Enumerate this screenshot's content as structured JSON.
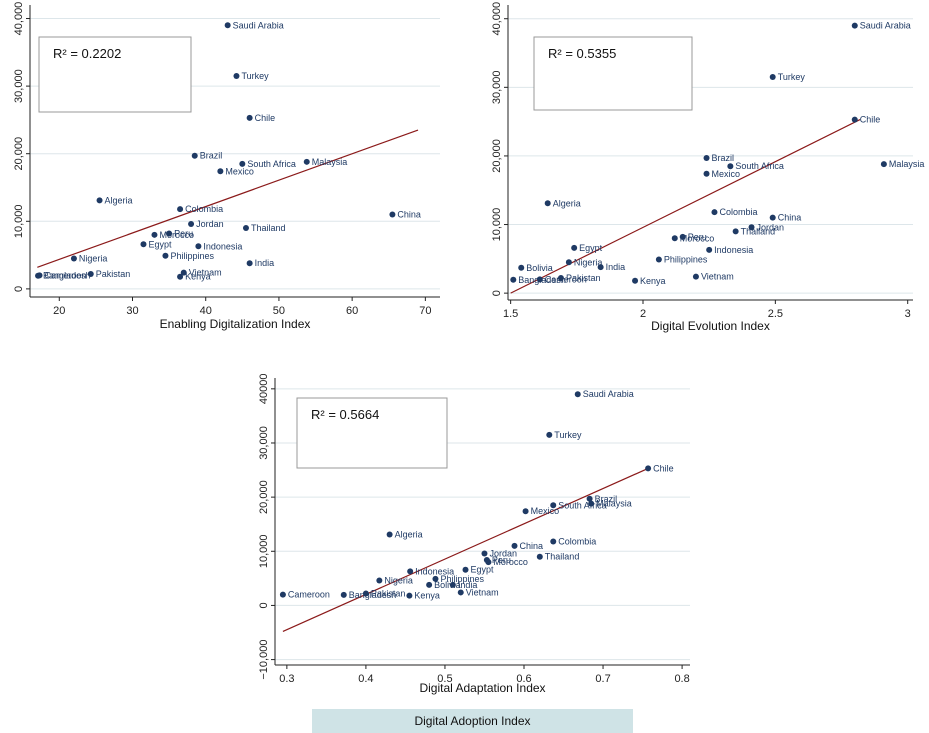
{
  "chart_data": [
    {
      "type": "scatter",
      "xlabel": "Enabling Digitalization Index",
      "ylabel": "",
      "xlim": [
        16,
        72
      ],
      "ylim": [
        -1200,
        42000
      ],
      "xticks": [
        20,
        30,
        40,
        50,
        60,
        70
      ],
      "xtick_labels": [
        "20",
        "30",
        "40",
        "50",
        "60",
        "70"
      ],
      "yticks": [
        0,
        10000,
        20000,
        30000,
        40000
      ],
      "ytick_labels": [
        "0",
        "10,000",
        "20,000",
        "30,000",
        "40,000"
      ],
      "r2_text": "R² = 0.2202",
      "fit_line": [
        [
          17,
          3200
        ],
        [
          69,
          23500
        ]
      ],
      "points": [
        {
          "label": "Saudi Arabia",
          "x": 43,
          "y": 39000
        },
        {
          "label": "Turkey",
          "x": 44.2,
          "y": 31500
        },
        {
          "label": "Chile",
          "x": 46,
          "y": 25300
        },
        {
          "label": "Brazil",
          "x": 38.5,
          "y": 19700
        },
        {
          "label": "South Africa",
          "x": 45,
          "y": 18500
        },
        {
          "label": "Malaysia",
          "x": 53.8,
          "y": 18800
        },
        {
          "label": "Mexico",
          "x": 42,
          "y": 17400
        },
        {
          "label": "Algeria",
          "x": 25.5,
          "y": 13100
        },
        {
          "label": "Colombia",
          "x": 36.5,
          "y": 11800
        },
        {
          "label": "China",
          "x": 65.5,
          "y": 11000
        },
        {
          "label": "Jordan",
          "x": 38,
          "y": 9600
        },
        {
          "label": "Thailand",
          "x": 45.5,
          "y": 9000
        },
        {
          "label": "Peru",
          "x": 35,
          "y": 8200
        },
        {
          "label": "Morocco",
          "x": 33,
          "y": 8000
        },
        {
          "label": "Egypt",
          "x": 31.5,
          "y": 6600
        },
        {
          "label": "Indonesia",
          "x": 39,
          "y": 6300
        },
        {
          "label": "Philippines",
          "x": 34.5,
          "y": 4900
        },
        {
          "label": "Nigeria",
          "x": 22,
          "y": 4500
        },
        {
          "label": "India",
          "x": 46,
          "y": 3800
        },
        {
          "label": "Vietnam",
          "x": 37,
          "y": 2400
        },
        {
          "label": "Pakistan",
          "x": 24.3,
          "y": 2200
        },
        {
          "label": "Kenya",
          "x": 36.5,
          "y": 1800
        },
        {
          "label": "Cameroon",
          "x": 17.3,
          "y": 2000
        },
        {
          "label": "Bangladesh",
          "x": 17.1,
          "y": 1950
        }
      ]
    },
    {
      "type": "scatter",
      "xlabel": "Digital Evolution Index",
      "ylabel": "",
      "xlim": [
        1.49,
        3.02
      ],
      "ylim": [
        -1000,
        42000
      ],
      "xticks": [
        1.5,
        2,
        2.5,
        3
      ],
      "xtick_labels": [
        "1.5",
        "2",
        "2.5",
        "3"
      ],
      "yticks": [
        0,
        10000,
        20000,
        30000,
        40000
      ],
      "ytick_labels": [
        "0",
        "10,000",
        "20,000",
        "30,000",
        "40,000"
      ],
      "r2_text": "R² = 0.5355",
      "fit_line": [
        [
          1.5,
          0
        ],
        [
          2.82,
          25300
        ]
      ],
      "points": [
        {
          "label": "Saudi Arabia",
          "x": 2.8,
          "y": 39000
        },
        {
          "label": "Turkey",
          "x": 2.49,
          "y": 31500
        },
        {
          "label": "Chile",
          "x": 2.8,
          "y": 25300
        },
        {
          "label": "Malaysia",
          "x": 2.91,
          "y": 18800
        },
        {
          "label": "Brazil",
          "x": 2.24,
          "y": 19700
        },
        {
          "label": "South Africa",
          "x": 2.33,
          "y": 18500
        },
        {
          "label": "Mexico",
          "x": 2.24,
          "y": 17400
        },
        {
          "label": "Algeria",
          "x": 1.64,
          "y": 13100
        },
        {
          "label": "Colombia",
          "x": 2.27,
          "y": 11800
        },
        {
          "label": "China",
          "x": 2.49,
          "y": 11000
        },
        {
          "label": "Jordan",
          "x": 2.41,
          "y": 9600
        },
        {
          "label": "Thailand",
          "x": 2.35,
          "y": 9000
        },
        {
          "label": "Peru",
          "x": 2.15,
          "y": 8200
        },
        {
          "label": "Morocco",
          "x": 2.12,
          "y": 8000
        },
        {
          "label": "Egypt",
          "x": 1.74,
          "y": 6600
        },
        {
          "label": "Indonesia",
          "x": 2.25,
          "y": 6300
        },
        {
          "label": "Philippines",
          "x": 2.06,
          "y": 4900
        },
        {
          "label": "Nigeria",
          "x": 1.72,
          "y": 4500
        },
        {
          "label": "India",
          "x": 1.84,
          "y": 3800
        },
        {
          "label": "Bolivia",
          "x": 1.54,
          "y": 3700
        },
        {
          "label": "Vietnam",
          "x": 2.2,
          "y": 2400
        },
        {
          "label": "Pakistan",
          "x": 1.69,
          "y": 2200
        },
        {
          "label": "Kenya",
          "x": 1.97,
          "y": 1800
        },
        {
          "label": "Cameroon",
          "x": 1.61,
          "y": 2000
        },
        {
          "label": "Bangladesh",
          "x": 1.51,
          "y": 1950
        }
      ]
    },
    {
      "type": "scatter",
      "xlabel": "Digital Adaptation Index",
      "ylabel": "",
      "xlim": [
        0.285,
        0.81
      ],
      "ylim": [
        -11000,
        42000
      ],
      "xticks": [
        0.3,
        0.4,
        0.5,
        0.6,
        0.7,
        0.8
      ],
      "xtick_labels": [
        "0.3",
        "0.4",
        "0.5",
        "0.6",
        "0.7",
        "0.8"
      ],
      "yticks": [
        -10000,
        0,
        10000,
        20000,
        30000,
        40000
      ],
      "ytick_labels": [
        "−10,000",
        "0",
        "10,000",
        "20,000",
        "30,000",
        "40000"
      ],
      "r2_text": "R² = 0.5664",
      "fit_line": [
        [
          0.295,
          -4800
        ],
        [
          0.757,
          25300
        ]
      ],
      "points": [
        {
          "label": "Saudi Arabia",
          "x": 0.668,
          "y": 39000
        },
        {
          "label": "Turkey",
          "x": 0.632,
          "y": 31500
        },
        {
          "label": "Chile",
          "x": 0.757,
          "y": 25300
        },
        {
          "label": "Brazil",
          "x": 0.683,
          "y": 19700
        },
        {
          "label": "Malaysia",
          "x": 0.685,
          "y": 18800
        },
        {
          "label": "South Africa",
          "x": 0.637,
          "y": 18500
        },
        {
          "label": "Mexico",
          "x": 0.602,
          "y": 17400
        },
        {
          "label": "Algeria",
          "x": 0.43,
          "y": 13100
        },
        {
          "label": "Colombia",
          "x": 0.637,
          "y": 11800
        },
        {
          "label": "China",
          "x": 0.588,
          "y": 11000
        },
        {
          "label": "Jordan",
          "x": 0.55,
          "y": 9600
        },
        {
          "label": "Thailand",
          "x": 0.62,
          "y": 9000
        },
        {
          "label": "Peru",
          "x": 0.553,
          "y": 8400
        },
        {
          "label": "Morocco",
          "x": 0.555,
          "y": 8000
        },
        {
          "label": "Egypt",
          "x": 0.526,
          "y": 6600
        },
        {
          "label": "Indonesia",
          "x": 0.456,
          "y": 6300
        },
        {
          "label": "Philippines",
          "x": 0.488,
          "y": 4900
        },
        {
          "label": "Nigeria",
          "x": 0.417,
          "y": 4600
        },
        {
          "label": "Bolivia",
          "x": 0.48,
          "y": 3800
        },
        {
          "label": "India",
          "x": 0.51,
          "y": 3800
        },
        {
          "label": "Vietnam",
          "x": 0.52,
          "y": 2400
        },
        {
          "label": "Pakistan",
          "x": 0.4,
          "y": 2200
        },
        {
          "label": "Kenya",
          "x": 0.455,
          "y": 1800
        },
        {
          "label": "Bangladesh",
          "x": 0.372,
          "y": 1950
        },
        {
          "label": "Cameroon",
          "x": 0.295,
          "y": 2000
        }
      ]
    }
  ],
  "caption": "Digital Adoption Index",
  "colors": {
    "point": "#1f3a64",
    "label": "#1f3a64",
    "fit_line": "#8b1a1a",
    "grid": "#dde6ea",
    "axis": "#222222",
    "caption_bg": "#cfe3e6"
  }
}
